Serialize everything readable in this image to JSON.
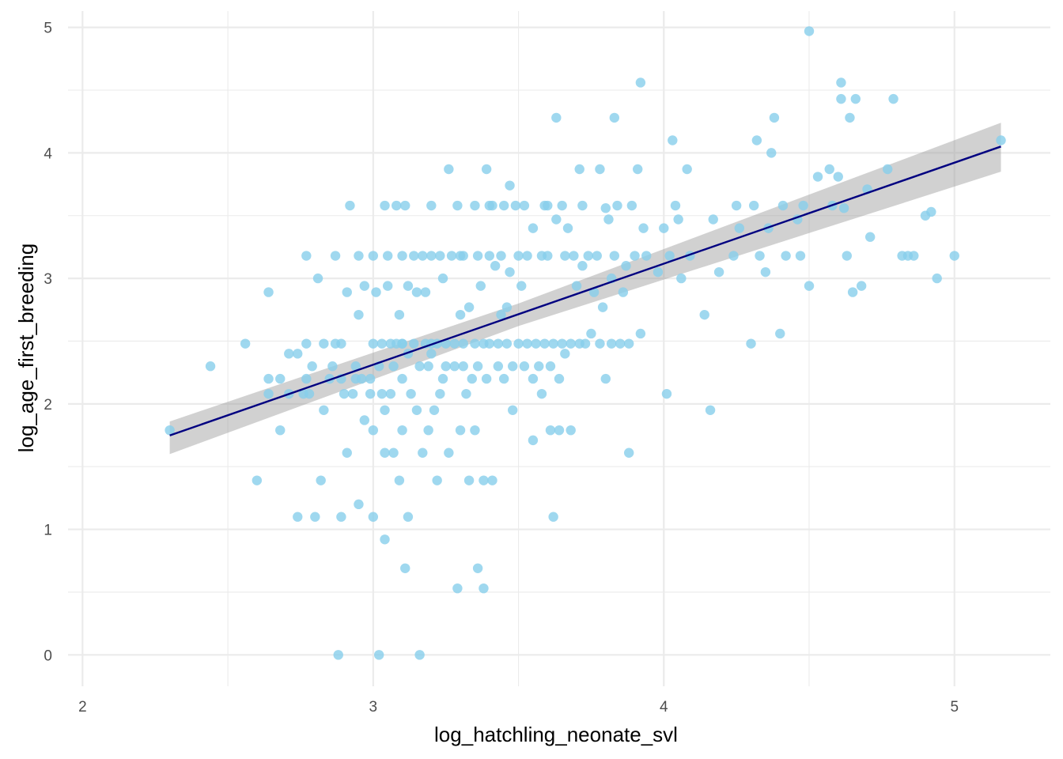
{
  "chart_data": {
    "type": "scatter",
    "xlabel": "log_hatchling_neonate_svl",
    "ylabel": "log_age_first_breeding",
    "xlim": [
      1.95,
      5.33
    ],
    "ylim": [
      -0.25,
      5.13
    ],
    "x_ticks": [
      2,
      3,
      4,
      5
    ],
    "y_ticks": [
      0,
      1,
      2,
      3,
      4,
      5
    ],
    "grid": true,
    "legend": "none",
    "colors": {
      "points": "#87CEEB",
      "line": "#000080",
      "band": "#999999",
      "grid": "#ebebeb"
    },
    "regression": {
      "x_range": [
        2.3,
        5.16
      ],
      "intercept": -0.103,
      "slope": 0.805,
      "ci": {
        "x": [
          2.3,
          3.5,
          5.16
        ],
        "lower": [
          1.6,
          2.62,
          3.85
        ],
        "upper": [
          1.86,
          2.8,
          4.24
        ]
      }
    },
    "points": [
      [
        2.3,
        1.79
      ],
      [
        2.44,
        2.3
      ],
      [
        2.56,
        2.48
      ],
      [
        2.6,
        1.39
      ],
      [
        2.64,
        2.89
      ],
      [
        2.64,
        2.2
      ],
      [
        2.64,
        2.08
      ],
      [
        2.68,
        2.2
      ],
      [
        2.68,
        1.79
      ],
      [
        2.71,
        2.4
      ],
      [
        2.71,
        2.08
      ],
      [
        2.74,
        2.4
      ],
      [
        2.74,
        1.1
      ],
      [
        2.76,
        2.08
      ],
      [
        2.77,
        2.2
      ],
      [
        2.77,
        2.48
      ],
      [
        2.77,
        3.18
      ],
      [
        2.78,
        2.08
      ],
      [
        2.79,
        2.3
      ],
      [
        2.8,
        1.1
      ],
      [
        2.81,
        3.0
      ],
      [
        2.82,
        1.39
      ],
      [
        2.83,
        2.48
      ],
      [
        2.83,
        1.95
      ],
      [
        2.85,
        2.2
      ],
      [
        2.86,
        2.3
      ],
      [
        2.87,
        2.48
      ],
      [
        2.87,
        3.18
      ],
      [
        2.89,
        2.2
      ],
      [
        2.89,
        2.48
      ],
      [
        2.89,
        1.1
      ],
      [
        2.9,
        2.08
      ],
      [
        2.91,
        2.89
      ],
      [
        2.91,
        1.61
      ],
      [
        2.92,
        3.58
      ],
      [
        2.93,
        2.08
      ],
      [
        2.94,
        2.2
      ],
      [
        2.94,
        2.3
      ],
      [
        2.95,
        2.71
      ],
      [
        2.95,
        3.18
      ],
      [
        2.96,
        2.2
      ],
      [
        2.97,
        2.94
      ],
      [
        2.97,
        1.87
      ],
      [
        2.99,
        2.2
      ],
      [
        2.99,
        2.08
      ],
      [
        3.0,
        1.79
      ],
      [
        3.0,
        2.48
      ],
      [
        3.0,
        3.18
      ],
      [
        3.01,
        2.89
      ],
      [
        3.02,
        2.3
      ],
      [
        3.03,
        2.48
      ],
      [
        3.03,
        2.08
      ],
      [
        3.04,
        1.95
      ],
      [
        3.04,
        1.61
      ],
      [
        3.04,
        3.58
      ],
      [
        3.05,
        3.18
      ],
      [
        3.05,
        2.94
      ],
      [
        3.06,
        2.48
      ],
      [
        3.06,
        2.08
      ],
      [
        3.07,
        1.61
      ],
      [
        3.07,
        2.3
      ],
      [
        3.08,
        3.58
      ],
      [
        3.08,
        2.48
      ],
      [
        3.09,
        2.71
      ],
      [
        3.09,
        1.39
      ],
      [
        3.1,
        2.48
      ],
      [
        3.1,
        3.18
      ],
      [
        3.1,
        2.2
      ],
      [
        3.1,
        1.79
      ],
      [
        3.11,
        3.58
      ],
      [
        3.11,
        0.69
      ],
      [
        3.12,
        2.4
      ],
      [
        3.12,
        1.1
      ],
      [
        3.12,
        2.94
      ],
      [
        3.13,
        2.08
      ],
      [
        3.14,
        3.18
      ],
      [
        3.14,
        2.48
      ],
      [
        3.15,
        2.89
      ],
      [
        3.15,
        1.95
      ],
      [
        3.16,
        2.3
      ],
      [
        3.17,
        3.18
      ],
      [
        3.17,
        1.61
      ],
      [
        3.18,
        2.48
      ],
      [
        3.18,
        2.89
      ],
      [
        3.19,
        2.3
      ],
      [
        3.19,
        1.79
      ],
      [
        3.2,
        3.18
      ],
      [
        3.2,
        3.58
      ],
      [
        3.2,
        2.4
      ],
      [
        3.21,
        1.95
      ],
      [
        3.22,
        2.48
      ],
      [
        3.22,
        1.39
      ],
      [
        3.23,
        3.18
      ],
      [
        3.23,
        2.08
      ],
      [
        3.24,
        2.2
      ],
      [
        3.24,
        3.0
      ],
      [
        3.25,
        2.48
      ],
      [
        3.25,
        2.3
      ],
      [
        3.26,
        3.87
      ],
      [
        3.26,
        1.61
      ],
      [
        3.27,
        3.18
      ],
      [
        3.28,
        2.3
      ],
      [
        3.28,
        2.48
      ],
      [
        3.29,
        0.53
      ],
      [
        3.29,
        3.58
      ],
      [
        3.3,
        2.71
      ],
      [
        3.3,
        1.79
      ],
      [
        3.31,
        2.48
      ],
      [
        3.31,
        2.3
      ],
      [
        3.31,
        3.18
      ],
      [
        3.32,
        2.08
      ],
      [
        3.33,
        1.39
      ],
      [
        3.33,
        2.77
      ],
      [
        3.34,
        2.2
      ],
      [
        3.35,
        3.58
      ],
      [
        3.35,
        2.48
      ],
      [
        3.35,
        1.79
      ],
      [
        3.36,
        0.69
      ],
      [
        3.36,
        2.3
      ],
      [
        3.36,
        3.18
      ],
      [
        3.37,
        2.94
      ],
      [
        3.38,
        0.53
      ],
      [
        3.38,
        1.39
      ],
      [
        3.38,
        2.48
      ],
      [
        3.39,
        3.87
      ],
      [
        3.39,
        2.2
      ],
      [
        3.4,
        3.18
      ],
      [
        3.4,
        2.48
      ],
      [
        3.41,
        3.58
      ],
      [
        3.41,
        1.39
      ],
      [
        3.42,
        3.1
      ],
      [
        3.43,
        2.3
      ],
      [
        3.43,
        2.48
      ],
      [
        3.44,
        3.18
      ],
      [
        3.44,
        2.71
      ],
      [
        3.45,
        2.2
      ],
      [
        3.45,
        3.58
      ],
      [
        3.46,
        2.48
      ],
      [
        3.46,
        2.77
      ],
      [
        3.47,
        3.74
      ],
      [
        3.47,
        3.05
      ],
      [
        3.48,
        2.3
      ],
      [
        3.48,
        1.95
      ],
      [
        3.49,
        3.58
      ],
      [
        3.5,
        2.48
      ],
      [
        3.5,
        3.18
      ],
      [
        3.51,
        2.94
      ],
      [
        3.52,
        2.3
      ],
      [
        3.52,
        3.58
      ],
      [
        3.53,
        2.48
      ],
      [
        3.53,
        3.18
      ],
      [
        3.55,
        3.4
      ],
      [
        3.55,
        2.2
      ],
      [
        3.55,
        1.71
      ],
      [
        3.56,
        2.48
      ],
      [
        3.57,
        2.3
      ],
      [
        3.58,
        3.18
      ],
      [
        3.58,
        2.08
      ],
      [
        3.59,
        3.58
      ],
      [
        3.59,
        2.48
      ],
      [
        3.6,
        3.18
      ],
      [
        3.61,
        2.3
      ],
      [
        3.61,
        1.79
      ],
      [
        3.62,
        1.1
      ],
      [
        3.62,
        2.48
      ],
      [
        3.63,
        4.28
      ],
      [
        3.63,
        3.47
      ],
      [
        3.64,
        2.2
      ],
      [
        3.64,
        1.79
      ],
      [
        3.65,
        3.58
      ],
      [
        3.65,
        2.48
      ],
      [
        3.66,
        3.18
      ],
      [
        3.66,
        2.4
      ],
      [
        3.67,
        3.4
      ],
      [
        3.68,
        2.48
      ],
      [
        3.68,
        1.79
      ],
      [
        3.69,
        3.18
      ],
      [
        3.7,
        2.94
      ],
      [
        3.71,
        3.87
      ],
      [
        3.71,
        2.48
      ],
      [
        3.72,
        3.58
      ],
      [
        3.72,
        3.1
      ],
      [
        3.73,
        2.48
      ],
      [
        3.74,
        3.18
      ],
      [
        3.75,
        2.56
      ],
      [
        3.76,
        2.89
      ],
      [
        3.77,
        3.18
      ],
      [
        3.78,
        3.87
      ],
      [
        3.78,
        2.48
      ],
      [
        3.79,
        2.77
      ],
      [
        3.8,
        3.56
      ],
      [
        3.8,
        2.2
      ],
      [
        3.81,
        3.47
      ],
      [
        3.82,
        2.48
      ],
      [
        3.82,
        3.0
      ],
      [
        3.83,
        4.28
      ],
      [
        3.83,
        3.18
      ],
      [
        3.84,
        3.58
      ],
      [
        3.85,
        2.48
      ],
      [
        3.86,
        2.89
      ],
      [
        3.87,
        3.1
      ],
      [
        3.88,
        2.48
      ],
      [
        3.88,
        1.61
      ],
      [
        3.89,
        3.58
      ],
      [
        3.9,
        3.18
      ],
      [
        3.91,
        3.87
      ],
      [
        3.92,
        4.56
      ],
      [
        3.92,
        2.56
      ],
      [
        3.93,
        3.4
      ],
      [
        3.94,
        3.18
      ],
      [
        3.98,
        3.05
      ],
      [
        4.0,
        3.4
      ],
      [
        4.01,
        2.08
      ],
      [
        4.02,
        3.18
      ],
      [
        4.03,
        4.1
      ],
      [
        4.04,
        3.58
      ],
      [
        4.05,
        3.47
      ],
      [
        4.06,
        3.0
      ],
      [
        4.08,
        3.87
      ],
      [
        4.09,
        3.18
      ],
      [
        4.14,
        2.71
      ],
      [
        4.16,
        1.95
      ],
      [
        4.17,
        3.47
      ],
      [
        4.19,
        3.05
      ],
      [
        4.24,
        3.18
      ],
      [
        4.25,
        3.58
      ],
      [
        4.26,
        3.4
      ],
      [
        4.3,
        2.48
      ],
      [
        4.31,
        3.58
      ],
      [
        4.32,
        4.1
      ],
      [
        4.33,
        3.18
      ],
      [
        4.35,
        3.05
      ],
      [
        4.36,
        3.4
      ],
      [
        4.37,
        4.0
      ],
      [
        4.38,
        4.28
      ],
      [
        4.4,
        2.56
      ],
      [
        4.41,
        3.58
      ],
      [
        4.42,
        3.18
      ],
      [
        4.46,
        3.47
      ],
      [
        4.47,
        3.18
      ],
      [
        4.48,
        3.58
      ],
      [
        4.5,
        4.97
      ],
      [
        4.5,
        2.94
      ],
      [
        4.53,
        3.81
      ],
      [
        4.57,
        3.87
      ],
      [
        4.58,
        3.58
      ],
      [
        4.6,
        3.81
      ],
      [
        4.61,
        4.56
      ],
      [
        4.61,
        4.43
      ],
      [
        4.62,
        3.56
      ],
      [
        4.63,
        3.18
      ],
      [
        4.64,
        4.28
      ],
      [
        4.65,
        2.89
      ],
      [
        4.66,
        4.43
      ],
      [
        4.68,
        2.94
      ],
      [
        4.7,
        3.71
      ],
      [
        4.71,
        3.33
      ],
      [
        4.77,
        3.87
      ],
      [
        4.79,
        4.43
      ],
      [
        4.82,
        3.18
      ],
      [
        4.84,
        3.18
      ],
      [
        4.86,
        3.18
      ],
      [
        4.9,
        3.5
      ],
      [
        4.92,
        3.53
      ],
      [
        4.94,
        3.0
      ],
      [
        5.0,
        3.18
      ],
      [
        5.16,
        4.1
      ],
      [
        2.88,
        0.0
      ],
      [
        3.02,
        0.0
      ],
      [
        3.16,
        0.0
      ],
      [
        3.04,
        0.92
      ],
      [
        2.95,
        1.2
      ],
      [
        3.0,
        1.1
      ],
      [
        3.6,
        3.58
      ],
      [
        3.4,
        3.58
      ],
      [
        3.3,
        3.18
      ],
      [
        3.2,
        2.48
      ],
      [
        3.1,
        2.48
      ]
    ]
  }
}
